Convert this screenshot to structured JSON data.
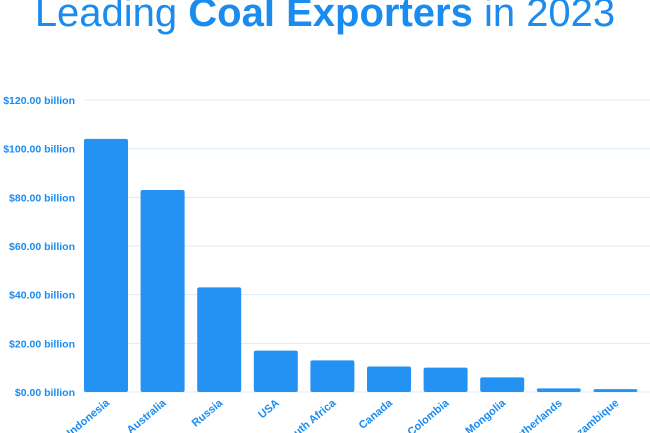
{
  "chart_data": {
    "type": "bar",
    "title": {
      "prefix": "Leading ",
      "emphasis": "Coal Exporters",
      "suffix": " in 2023"
    },
    "xlabel": "",
    "ylabel": "",
    "categories": [
      "Indonesia",
      "Australia",
      "Russia",
      "USA",
      "South Africa",
      "Canada",
      "Colombia",
      "Mongolia",
      "Netherlands",
      "Mozambique"
    ],
    "values": [
      104.0,
      83.0,
      43.0,
      17.0,
      13.0,
      10.5,
      10.0,
      6.0,
      1.5,
      1.2
    ],
    "ylim": [
      0,
      120
    ],
    "y_ticks": [
      "$0.00 billion",
      "$20.00 billion",
      "$40.00 billion",
      "$60.00 billion",
      "$80.00 billion",
      "$100.00 billion",
      "$120.00 billion"
    ],
    "y_tick_values": [
      0,
      20,
      40,
      60,
      80,
      100,
      120
    ],
    "grid": true,
    "legend": "none",
    "colors": {
      "bar": "#2492f2",
      "title": "#1a8cf0",
      "tick_label": "#1a8cf0",
      "grid": "#dcebfa"
    }
  }
}
